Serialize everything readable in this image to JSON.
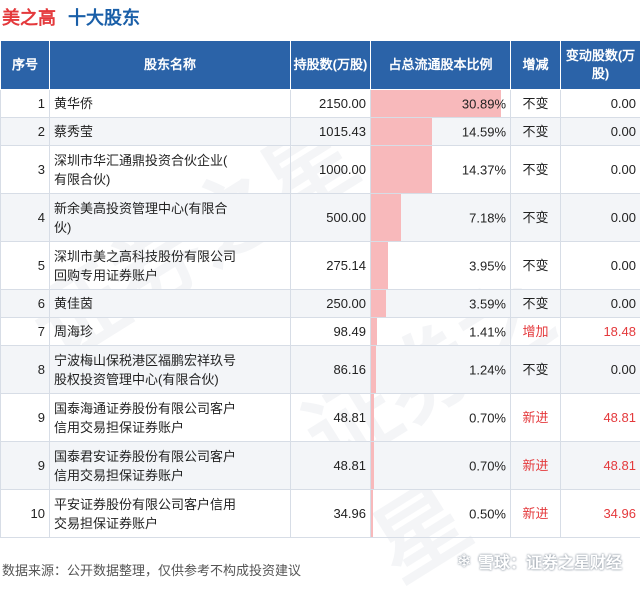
{
  "header": {
    "company": "美之高",
    "subtitle": "十大股东"
  },
  "table": {
    "headers": {
      "rank": "序号",
      "name": "股东名称",
      "shares": "持股数(万股)",
      "ratio": "占总流通股本比例",
      "change": "增减",
      "delta": "变动股数(万股)"
    },
    "rows": [
      {
        "rank": "1",
        "name": [
          "黄华侨"
        ],
        "shares": "2150.00",
        "ratio": "30.89%",
        "ratio_value": 30.89,
        "change": "不变",
        "delta": "0.00",
        "up": false
      },
      {
        "rank": "2",
        "name": [
          "蔡秀莹"
        ],
        "shares": "1015.43",
        "ratio": "14.59%",
        "ratio_value": 14.59,
        "change": "不变",
        "delta": "0.00",
        "up": false
      },
      {
        "rank": "3",
        "name": [
          "深圳市华汇通鼎投资合伙企业(",
          "有限合伙)"
        ],
        "shares": "1000.00",
        "ratio": "14.37%",
        "ratio_value": 14.37,
        "change": "不变",
        "delta": "0.00",
        "up": false
      },
      {
        "rank": "4",
        "name": [
          "新余美高投资管理中心(有限合",
          "伙)"
        ],
        "shares": "500.00",
        "ratio": "7.18%",
        "ratio_value": 7.18,
        "change": "不变",
        "delta": "0.00",
        "up": false
      },
      {
        "rank": "5",
        "name": [
          "深圳市美之高科技股份有限公司",
          "回购专用证券账户"
        ],
        "shares": "275.14",
        "ratio": "3.95%",
        "ratio_value": 3.95,
        "change": "不变",
        "delta": "0.00",
        "up": false
      },
      {
        "rank": "6",
        "name": [
          "黄佳茵"
        ],
        "shares": "250.00",
        "ratio": "3.59%",
        "ratio_value": 3.59,
        "change": "不变",
        "delta": "0.00",
        "up": false
      },
      {
        "rank": "7",
        "name": [
          "周海珍"
        ],
        "shares": "98.49",
        "ratio": "1.41%",
        "ratio_value": 1.41,
        "change": "增加",
        "delta": "18.48",
        "up": true
      },
      {
        "rank": "8",
        "name": [
          "宁波梅山保税港区福鹏宏祥玖号",
          "股权投资管理中心(有限合伙)"
        ],
        "shares": "86.16",
        "ratio": "1.24%",
        "ratio_value": 1.24,
        "change": "不变",
        "delta": "0.00",
        "up": false
      },
      {
        "rank": "9",
        "name": [
          "国泰海通证券股份有限公司客户",
          "信用交易担保证券账户"
        ],
        "shares": "48.81",
        "ratio": "0.70%",
        "ratio_value": 0.7,
        "change": "新进",
        "delta": "48.81",
        "up": true
      },
      {
        "rank": "9",
        "name": [
          "国泰君安证券股份有限公司客户",
          "信用交易担保证券账户"
        ],
        "shares": "48.81",
        "ratio": "0.70%",
        "ratio_value": 0.7,
        "change": "新进",
        "delta": "48.81",
        "up": true
      },
      {
        "rank": "10",
        "name": [
          "平安证券股份有限公司客户信用",
          "交易担保证券账户"
        ],
        "shares": "34.96",
        "ratio": "0.50%",
        "ratio_value": 0.5,
        "change": "新进",
        "delta": "34.96",
        "up": true
      }
    ]
  },
  "footer": {
    "source": "数据来源：公开数据整理，仅供参考不构成投资建议",
    "brand": "雪球：证券之星财经"
  },
  "watermark": [
    "证券之星",
    "证券之星"
  ],
  "colors": {
    "header_bg": "#2b63a8",
    "bar": "#f8b9bb",
    "accent_red": "#e4393c",
    "title_blue": "#1a5fa8"
  }
}
